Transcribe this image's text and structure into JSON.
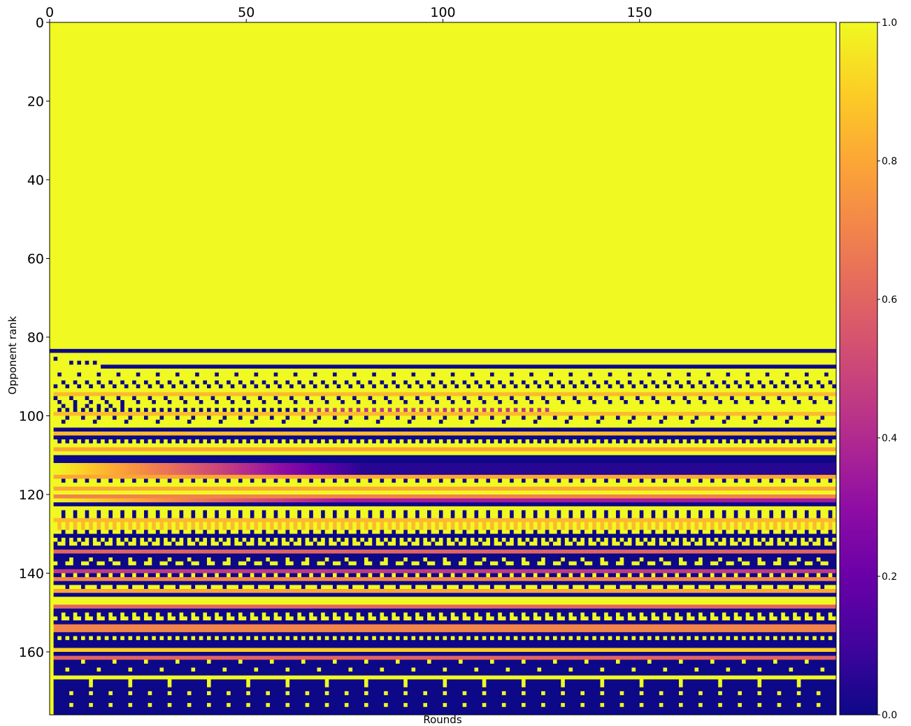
{
  "chart_data": {
    "type": "heatmap",
    "title": "",
    "xlabel": "Rounds",
    "ylabel": "Opponent rank",
    "x_axis_position": "top",
    "xlim": [
      0,
      200
    ],
    "ylim": [
      176,
      0
    ],
    "x_ticks": [
      0,
      50,
      100,
      150
    ],
    "y_ticks": [
      0,
      20,
      40,
      60,
      80,
      100,
      120,
      140,
      160
    ],
    "rows": 176,
    "cols": 200,
    "colormap": "plasma",
    "colorbar": {
      "range": [
        0.0,
        1.0
      ],
      "ticks": [
        "0.0",
        "0.2",
        "0.4",
        "0.6",
        "0.8",
        "1.0"
      ],
      "placement": "right"
    },
    "grid": false,
    "row_patterns_note_free": [
      {
        "rows": [
          0,
          82
        ],
        "value": 1.0
      },
      {
        "rows": [
          83,
          83
        ],
        "value": 0.0
      },
      {
        "rows": [
          84,
          86
        ],
        "value": 1.0,
        "sparse_zero_period": 0
      },
      {
        "rows": [
          87,
          87
        ],
        "value": 0.0,
        "start_col": 13
      },
      {
        "rows": [
          88,
          109
        ],
        "value": "alternating 1/0 periodic pattern"
      },
      {
        "rows": [
          110,
          111
        ],
        "value": 0.0
      },
      {
        "rows": [
          112,
          114
        ],
        "value": "decay 1.0 to 0.05"
      },
      {
        "rows": [
          115,
          175
        ],
        "value": "mixed periodic pattern"
      }
    ]
  }
}
